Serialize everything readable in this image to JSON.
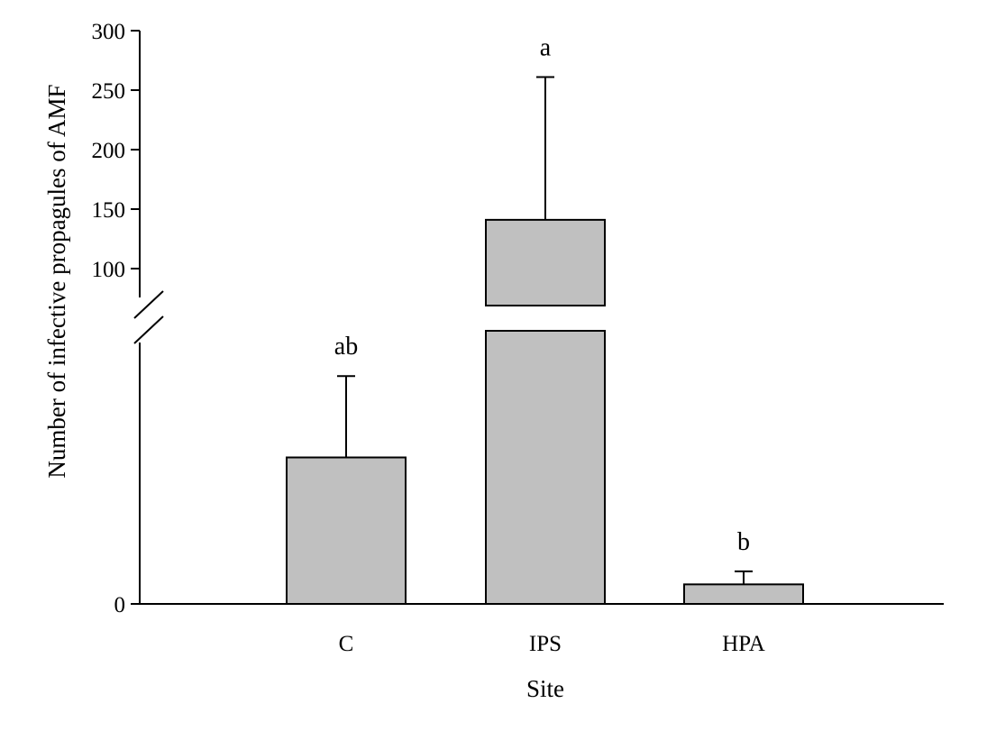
{
  "chart_data": {
    "type": "bar",
    "xlabel": "Site",
    "ylabel": "Number of infective propagules of AMF",
    "categories": [
      "C",
      "IPS",
      "HPA"
    ],
    "values": [
      45,
      141,
      6
    ],
    "error_upper": [
      70,
      261,
      10
    ],
    "significance_labels": [
      "ab",
      "a",
      "b"
    ],
    "y_break": true,
    "y_ticks_lower": [
      "0"
    ],
    "y_ticks_upper": [
      "100",
      "150",
      "200",
      "250",
      "300"
    ],
    "ylim_lower": [
      0,
      90
    ],
    "ylim_upper": [
      70,
      300
    ],
    "bar_color": "#c0c0c0",
    "grid": false,
    "legend": "none"
  }
}
